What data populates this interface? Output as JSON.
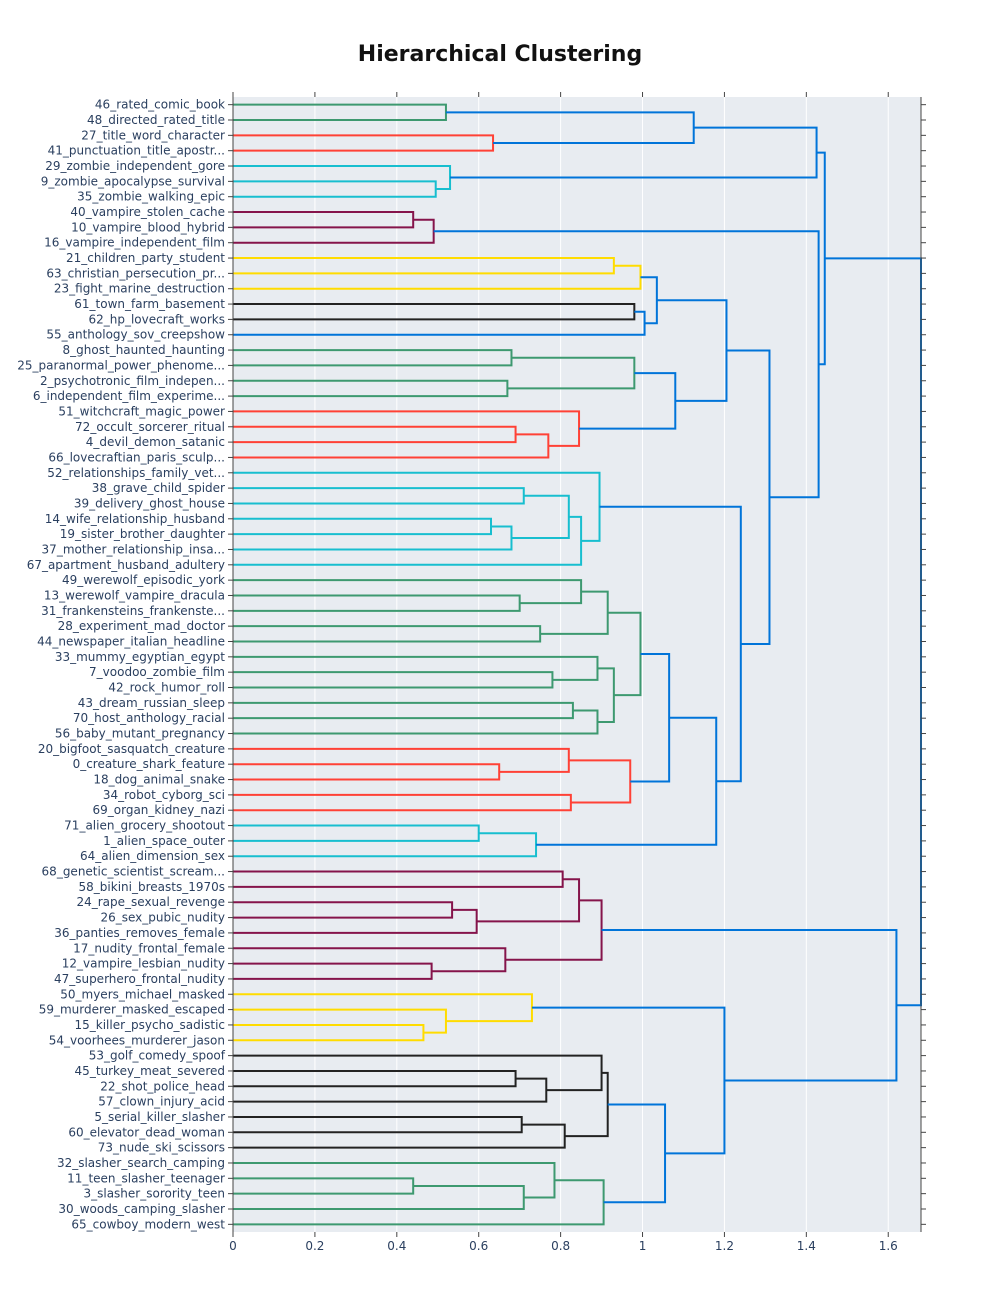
{
  "chart_data": {
    "type": "dendrogram",
    "title": "Hierarchical Clustering",
    "orientation": "horizontal",
    "xlim": [
      0,
      1.68
    ],
    "xticks": [
      0,
      0.2,
      0.4,
      0.6,
      0.8,
      1,
      1.2,
      1.4,
      1.6
    ],
    "xtick_labels": [
      "0",
      "0.2",
      "0.4",
      "0.6",
      "0.8",
      "1",
      "1.2",
      "1.4",
      "1.6"
    ],
    "plot_bg": "#e8ecf1",
    "colors": {
      "green": "#3d9970",
      "red": "#ff4136",
      "cyan": "#17becf",
      "maroon": "#85144b",
      "yellow": "#ffdc00",
      "dark": "#222222",
      "blue": "#0074d9"
    },
    "leaves": [
      "46_rated_comic_book",
      "48_directed_rated_title",
      "27_title_word_character",
      "41_punctuation_title_apostr...",
      "29_zombie_independent_gore",
      "9_zombie_apocalypse_survival",
      "35_zombie_walking_epic",
      "40_vampire_stolen_cache",
      "10_vampire_blood_hybrid",
      "16_vampire_independent_film",
      "21_children_party_student",
      "63_christian_persecution_pr...",
      "23_fight_marine_destruction",
      "61_town_farm_basement",
      "62_hp_lovecraft_works",
      "55_anthology_sov_creepshow",
      "8_ghost_haunted_haunting",
      "25_paranormal_power_phenome...",
      "2_psychotronic_film_indepen...",
      "6_independent_film_experime...",
      "51_witchcraft_magic_power",
      "72_occult_sorcerer_ritual",
      "4_devil_demon_satanic",
      "66_lovecraftian_paris_sculp...",
      "52_relationships_family_vet...",
      "38_grave_child_spider",
      "39_delivery_ghost_house",
      "14_wife_relationship_husband",
      "19_sister_brother_daughter",
      "37_mother_relationship_insa...",
      "67_apartment_husband_adultery",
      "49_werewolf_episodic_york",
      "13_werewolf_vampire_dracula",
      "31_frankensteins_frankenste...",
      "28_experiment_mad_doctor",
      "44_newspaper_italian_headline",
      "33_mummy_egyptian_egypt",
      "7_voodoo_zombie_film",
      "42_rock_humor_roll",
      "43_dream_russian_sleep",
      "70_host_anthology_racial",
      "56_baby_mutant_pregnancy",
      "20_bigfoot_sasquatch_creature",
      "0_creature_shark_feature",
      "18_dog_animal_snake",
      "34_robot_cyborg_sci",
      "69_organ_kidney_nazi",
      "71_alien_grocery_shootout",
      "1_alien_space_outer",
      "64_alien_dimension_sex",
      "68_genetic_scientist_scream...",
      "58_bikini_breasts_1970s",
      "24_rape_sexual_revenge",
      "26_sex_pubic_nudity",
      "36_panties_removes_female",
      "17_nudity_frontal_female",
      "12_vampire_lesbian_nudity",
      "47_superhero_frontal_nudity",
      "50_myers_michael_masked",
      "59_murderer_masked_escaped",
      "15_killer_psycho_sadistic",
      "54_voorhees_murderer_jason",
      "53_golf_comedy_spoof",
      "45_turkey_meat_severed",
      "22_shot_police_head",
      "57_clown_injury_acid",
      "5_serial_killer_slasher",
      "60_elevator_dead_woman",
      "73_nude_ski_scissors",
      "32_slasher_search_camping",
      "11_teen_slasher_teenager",
      "3_slasher_sorority_teen",
      "30_woods_camping_slasher",
      "65_cowboy_modern_west"
    ],
    "merges": [
      {
        "a": "L0",
        "b": "L1",
        "h": 0.52,
        "c": "green"
      },
      {
        "a": "L2",
        "b": "L3",
        "h": 0.635,
        "c": "red"
      },
      {
        "a": "L5",
        "b": "L6",
        "h": 0.495,
        "c": "cyan"
      },
      {
        "a": "L4",
        "b": "M2",
        "h": 0.53,
        "c": "cyan"
      },
      {
        "a": "M0",
        "b": "M1",
        "h": 1.125,
        "c": "blue"
      },
      {
        "a": "M4",
        "b": "M3",
        "h": 1.425,
        "c": "blue"
      },
      {
        "a": "L7",
        "b": "L8",
        "h": 0.44,
        "c": "maroon"
      },
      {
        "a": "M6",
        "b": "L9",
        "h": 0.49,
        "c": "maroon"
      },
      {
        "a": "L10",
        "b": "L11",
        "h": 0.93,
        "c": "yellow"
      },
      {
        "a": "M8",
        "b": "L12",
        "h": 0.995,
        "c": "yellow"
      },
      {
        "a": "L13",
        "b": "L14",
        "h": 0.98,
        "c": "dark"
      },
      {
        "a": "M10",
        "b": "L15",
        "h": 1.005,
        "c": "blue"
      },
      {
        "a": "M9",
        "b": "M11",
        "h": 1.035,
        "c": "blue"
      },
      {
        "a": "L16",
        "b": "L17",
        "h": 0.68,
        "c": "green"
      },
      {
        "a": "L18",
        "b": "L19",
        "h": 0.67,
        "c": "green"
      },
      {
        "a": "M13",
        "b": "M14",
        "h": 0.98,
        "c": "green"
      },
      {
        "a": "L21",
        "b": "L22",
        "h": 0.69,
        "c": "red"
      },
      {
        "a": "M16",
        "b": "L23",
        "h": 0.77,
        "c": "red"
      },
      {
        "a": "L20",
        "b": "M17",
        "h": 0.845,
        "c": "red"
      },
      {
        "a": "M15",
        "b": "M18",
        "h": 1.08,
        "c": "blue"
      },
      {
        "a": "M12",
        "b": "M19",
        "h": 1.205,
        "c": "blue"
      },
      {
        "a": "L25",
        "b": "L26",
        "h": 0.71,
        "c": "cyan"
      },
      {
        "a": "L27",
        "b": "L28",
        "h": 0.63,
        "c": "cyan"
      },
      {
        "a": "M22",
        "b": "L29",
        "h": 0.68,
        "c": "cyan"
      },
      {
        "a": "M21",
        "b": "M23",
        "h": 0.82,
        "c": "cyan"
      },
      {
        "a": "M24",
        "b": "L30",
        "h": 0.85,
        "c": "cyan"
      },
      {
        "a": "L24",
        "b": "M25",
        "h": 0.895,
        "c": "cyan"
      },
      {
        "a": "L32",
        "b": "L33",
        "h": 0.7,
        "c": "green"
      },
      {
        "a": "L31",
        "b": "M27",
        "h": 0.85,
        "c": "green"
      },
      {
        "a": "L34",
        "b": "L35",
        "h": 0.75,
        "c": "green"
      },
      {
        "a": "M28",
        "b": "M29",
        "h": 0.915,
        "c": "green"
      },
      {
        "a": "L37",
        "b": "L38",
        "h": 0.78,
        "c": "green"
      },
      {
        "a": "L36",
        "b": "M31",
        "h": 0.89,
        "c": "green"
      },
      {
        "a": "L39",
        "b": "L40",
        "h": 0.83,
        "c": "green"
      },
      {
        "a": "M33",
        "b": "L41",
        "h": 0.89,
        "c": "green"
      },
      {
        "a": "M32",
        "b": "M34",
        "h": 0.93,
        "c": "green"
      },
      {
        "a": "M30",
        "b": "M35",
        "h": 0.995,
        "c": "green"
      },
      {
        "a": "L43",
        "b": "L44",
        "h": 0.65,
        "c": "red"
      },
      {
        "a": "L42",
        "b": "M37",
        "h": 0.82,
        "c": "red"
      },
      {
        "a": "L45",
        "b": "L46",
        "h": 0.825,
        "c": "red"
      },
      {
        "a": "M38",
        "b": "M39",
        "h": 0.97,
        "c": "red"
      },
      {
        "a": "M36",
        "b": "M40",
        "h": 1.065,
        "c": "blue"
      },
      {
        "a": "L47",
        "b": "L48",
        "h": 0.6,
        "c": "cyan"
      },
      {
        "a": "M42",
        "b": "L49",
        "h": 0.74,
        "c": "cyan"
      },
      {
        "a": "M41",
        "b": "M43",
        "h": 1.18,
        "c": "blue"
      },
      {
        "a": "M26",
        "b": "M44",
        "h": 1.24,
        "c": "blue"
      },
      {
        "a": "M20",
        "b": "M45",
        "h": 1.31,
        "c": "blue"
      },
      {
        "a": "M7",
        "b": "M46",
        "h": 1.43,
        "c": "blue"
      },
      {
        "a": "M5",
        "b": "M47",
        "h": 1.445,
        "c": "blue"
      },
      {
        "a": "L50",
        "b": "L51",
        "h": 0.805,
        "c": "maroon"
      },
      {
        "a": "L52",
        "b": "L53",
        "h": 0.535,
        "c": "maroon"
      },
      {
        "a": "M50",
        "b": "L54",
        "h": 0.595,
        "c": "maroon"
      },
      {
        "a": "M49",
        "b": "M51",
        "h": 0.845,
        "c": "maroon"
      },
      {
        "a": "L56",
        "b": "L57",
        "h": 0.485,
        "c": "maroon"
      },
      {
        "a": "L55",
        "b": "M53",
        "h": 0.665,
        "c": "maroon"
      },
      {
        "a": "M52",
        "b": "M54",
        "h": 0.9,
        "c": "maroon"
      },
      {
        "a": "L60",
        "b": "L61",
        "h": 0.465,
        "c": "yellow"
      },
      {
        "a": "L59",
        "b": "M56",
        "h": 0.52,
        "c": "yellow"
      },
      {
        "a": "L58",
        "b": "M57",
        "h": 0.73,
        "c": "yellow"
      },
      {
        "a": "L63",
        "b": "L64",
        "h": 0.69,
        "c": "dark"
      },
      {
        "a": "M59",
        "b": "L65",
        "h": 0.765,
        "c": "dark"
      },
      {
        "a": "L62",
        "b": "M60",
        "h": 0.9,
        "c": "dark"
      },
      {
        "a": "L66",
        "b": "L67",
        "h": 0.705,
        "c": "dark"
      },
      {
        "a": "M62",
        "b": "L68",
        "h": 0.81,
        "c": "dark"
      },
      {
        "a": "M61",
        "b": "M63",
        "h": 0.915,
        "c": "dark"
      },
      {
        "a": "L70",
        "b": "L71",
        "h": 0.44,
        "c": "green"
      },
      {
        "a": "M65",
        "b": "L72",
        "h": 0.71,
        "c": "green"
      },
      {
        "a": "L69",
        "b": "M66",
        "h": 0.785,
        "c": "green"
      },
      {
        "a": "M67",
        "b": "L73",
        "h": 0.905,
        "c": "green"
      },
      {
        "a": "M64",
        "b": "M68",
        "h": 1.055,
        "c": "blue"
      },
      {
        "a": "M58",
        "b": "M69",
        "h": 1.2,
        "c": "blue"
      },
      {
        "a": "M55",
        "b": "M70",
        "h": 1.62,
        "c": "blue"
      },
      {
        "a": "M48",
        "b": "M71",
        "h": 1.68,
        "c": "blue"
      }
    ]
  }
}
